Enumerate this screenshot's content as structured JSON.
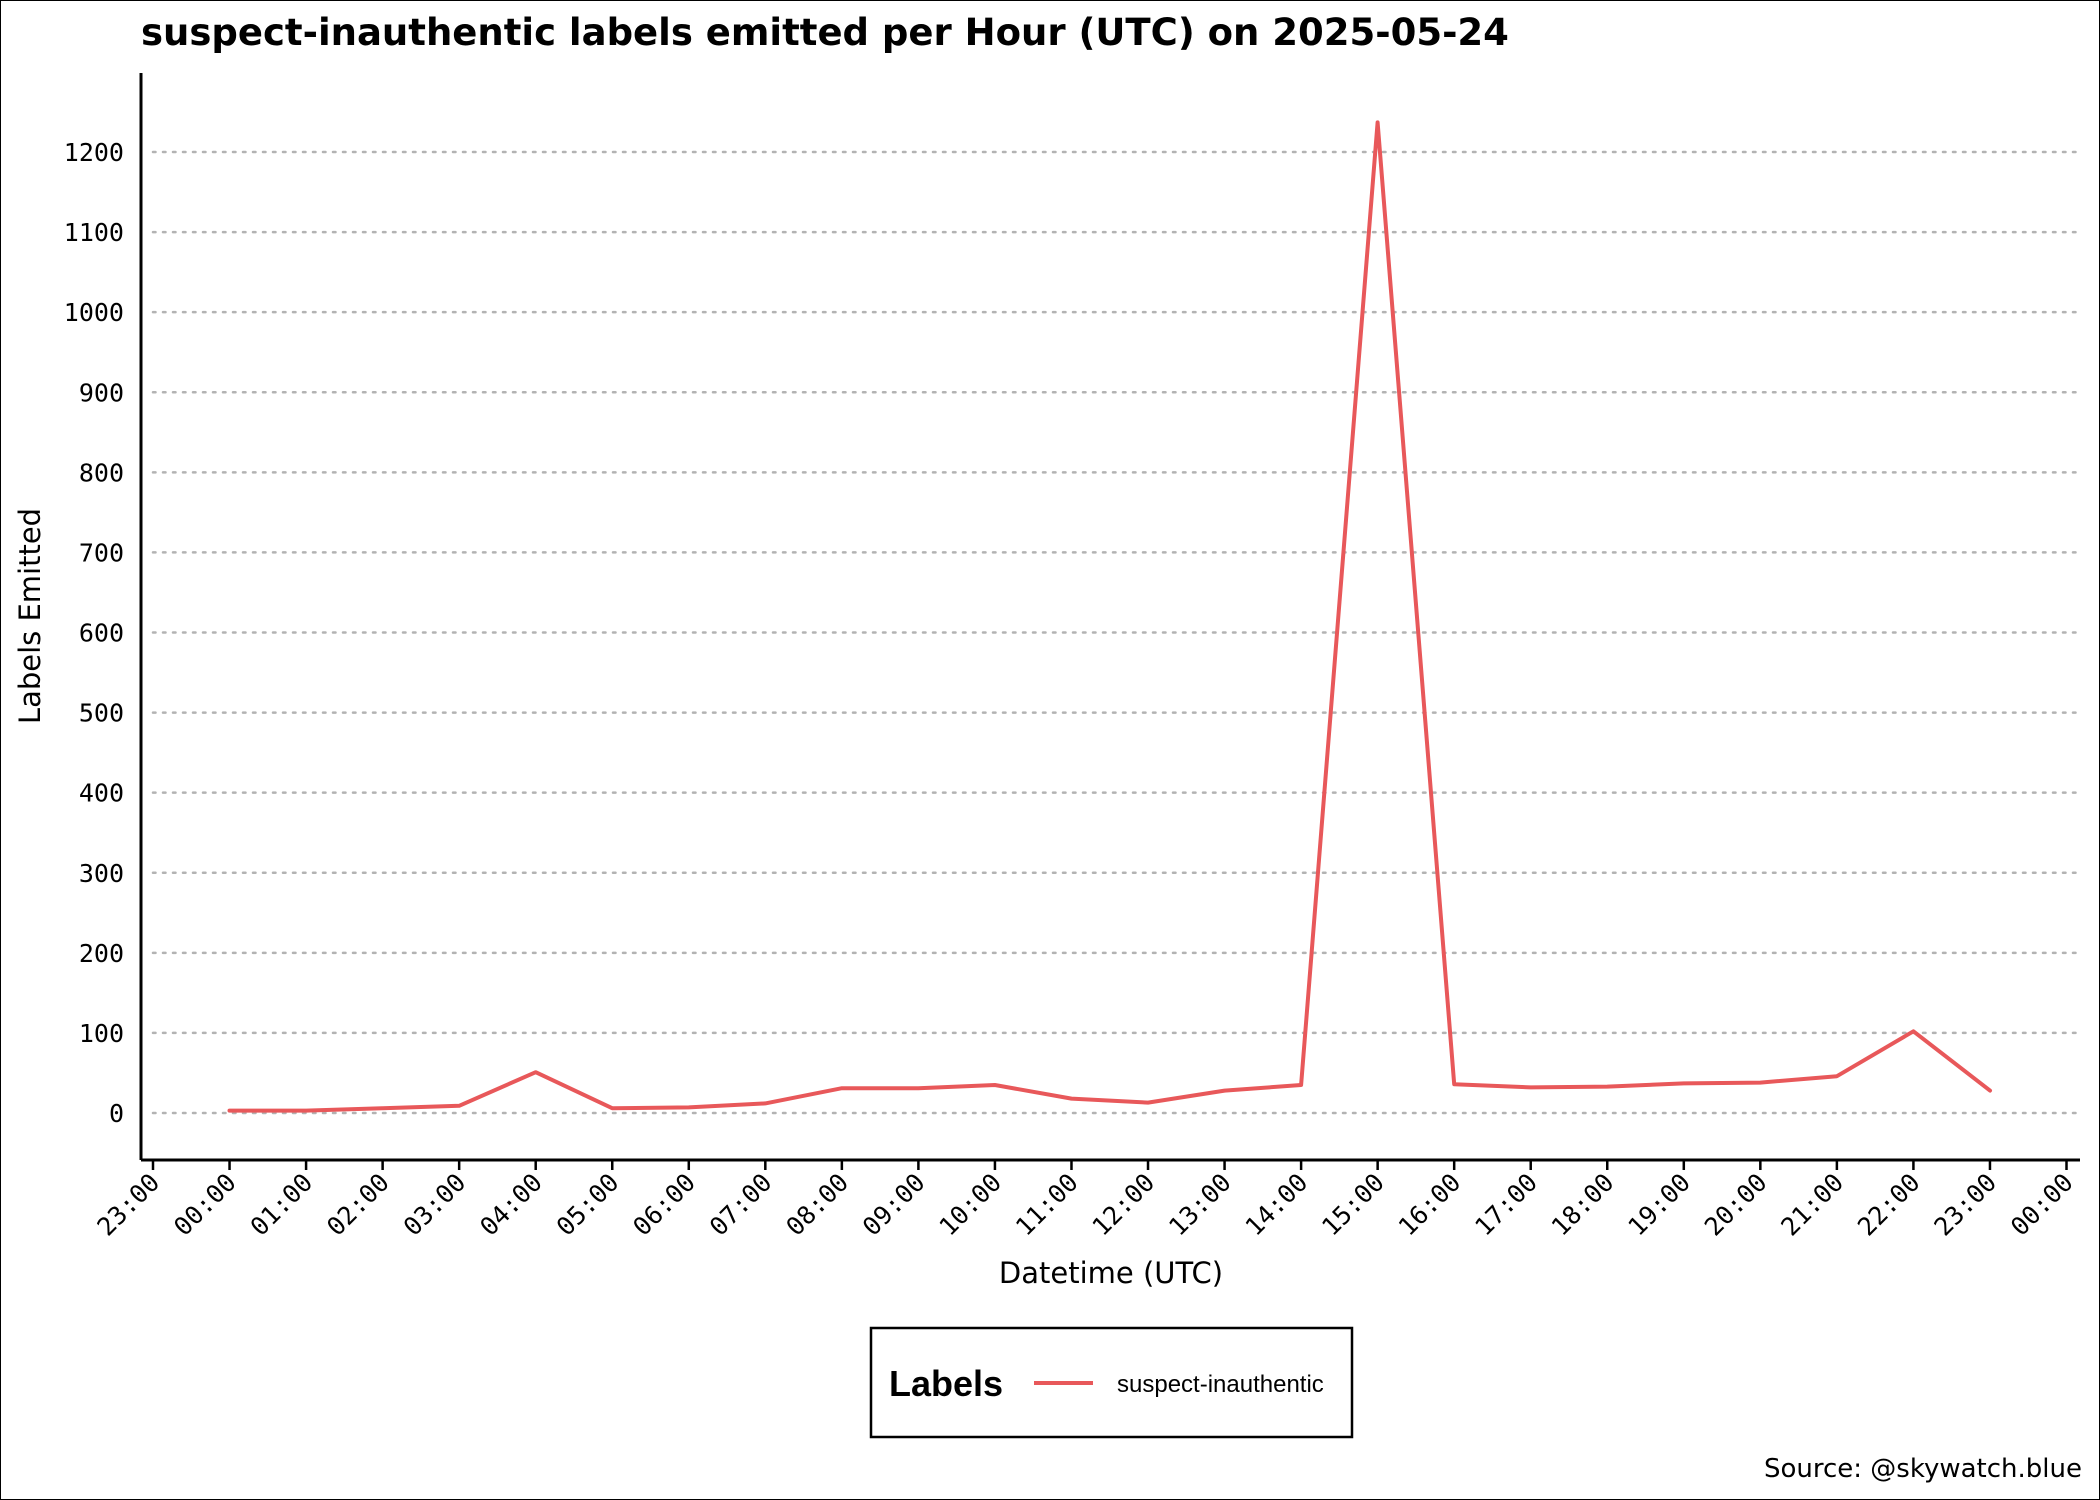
{
  "chart_data": {
    "type": "line",
    "title": "suspect-inauthentic labels emitted per Hour (UTC) on 2025-05-24",
    "xlabel": "Datetime (UTC)",
    "ylabel": "Labels Emitted",
    "x_tick_labels": [
      "23:00",
      "00:00",
      "01:00",
      "02:00",
      "03:00",
      "04:00",
      "05:00",
      "06:00",
      "07:00",
      "08:00",
      "09:00",
      "10:00",
      "11:00",
      "12:00",
      "13:00",
      "14:00",
      "15:00",
      "16:00",
      "17:00",
      "18:00",
      "19:00",
      "20:00",
      "21:00",
      "22:00",
      "23:00",
      "00:00"
    ],
    "y_ticks": [
      0,
      100,
      200,
      300,
      400,
      500,
      600,
      700,
      800,
      900,
      1000,
      1100,
      1200
    ],
    "ylim": [
      -55,
      1295
    ],
    "grid": "horizontal-dotted",
    "legend": {
      "title": "Labels",
      "position": "bottom-center"
    },
    "series": [
      {
        "name": "suspect-inauthentic",
        "color": "#e8585a",
        "x": [
          "00:00",
          "01:00",
          "02:00",
          "03:00",
          "04:00",
          "05:00",
          "06:00",
          "07:00",
          "08:00",
          "09:00",
          "10:00",
          "11:00",
          "12:00",
          "13:00",
          "14:00",
          "15:00",
          "16:00",
          "17:00",
          "18:00",
          "19:00",
          "20:00",
          "21:00",
          "22:00",
          "23:00"
        ],
        "values": [
          3,
          3,
          6,
          9,
          51,
          6,
          7,
          12,
          31,
          31,
          35,
          18,
          13,
          28,
          35,
          1237,
          36,
          32,
          33,
          37,
          38,
          46,
          102,
          28
        ]
      }
    ],
    "source": "Source: @skywatch.blue"
  }
}
